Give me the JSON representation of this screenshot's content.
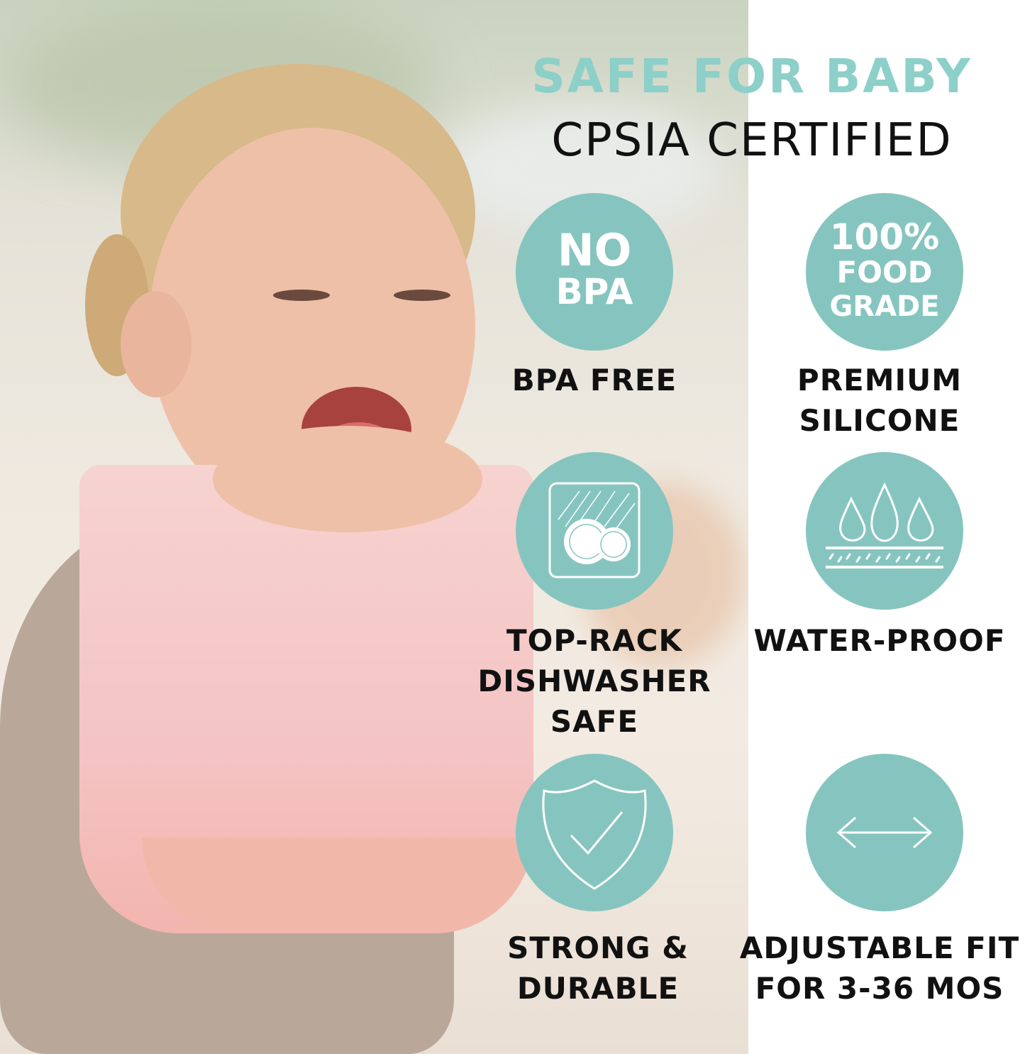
{
  "header": {
    "title": "SAFE FOR BABY",
    "subtitle": "CPSIA CERTIFIED"
  },
  "colors": {
    "accent": "#86c5bf",
    "heading": "#8dcfc9",
    "text": "#111111"
  },
  "features": [
    {
      "icon": "no-bpa-icon",
      "icon_text": [
        "NO",
        "BPA"
      ],
      "label": [
        "BPA FREE"
      ]
    },
    {
      "icon": "food-grade-icon",
      "icon_text": [
        "100%",
        "FOOD",
        "GRADE"
      ],
      "label": [
        "PREMIUM",
        "SILICONE"
      ]
    },
    {
      "icon": "dishwasher-icon",
      "label": [
        "TOP-RACK",
        "DISHWASHER",
        "SAFE"
      ]
    },
    {
      "icon": "water-drops-icon",
      "label": [
        "WATER-PROOF"
      ]
    },
    {
      "icon": "shield-check-icon",
      "label": [
        "STRONG &",
        "DURABLE"
      ]
    },
    {
      "icon": "double-arrow-icon",
      "label": [
        "ADJUSTABLE FIT",
        "FOR 3-36 MOS"
      ]
    }
  ]
}
